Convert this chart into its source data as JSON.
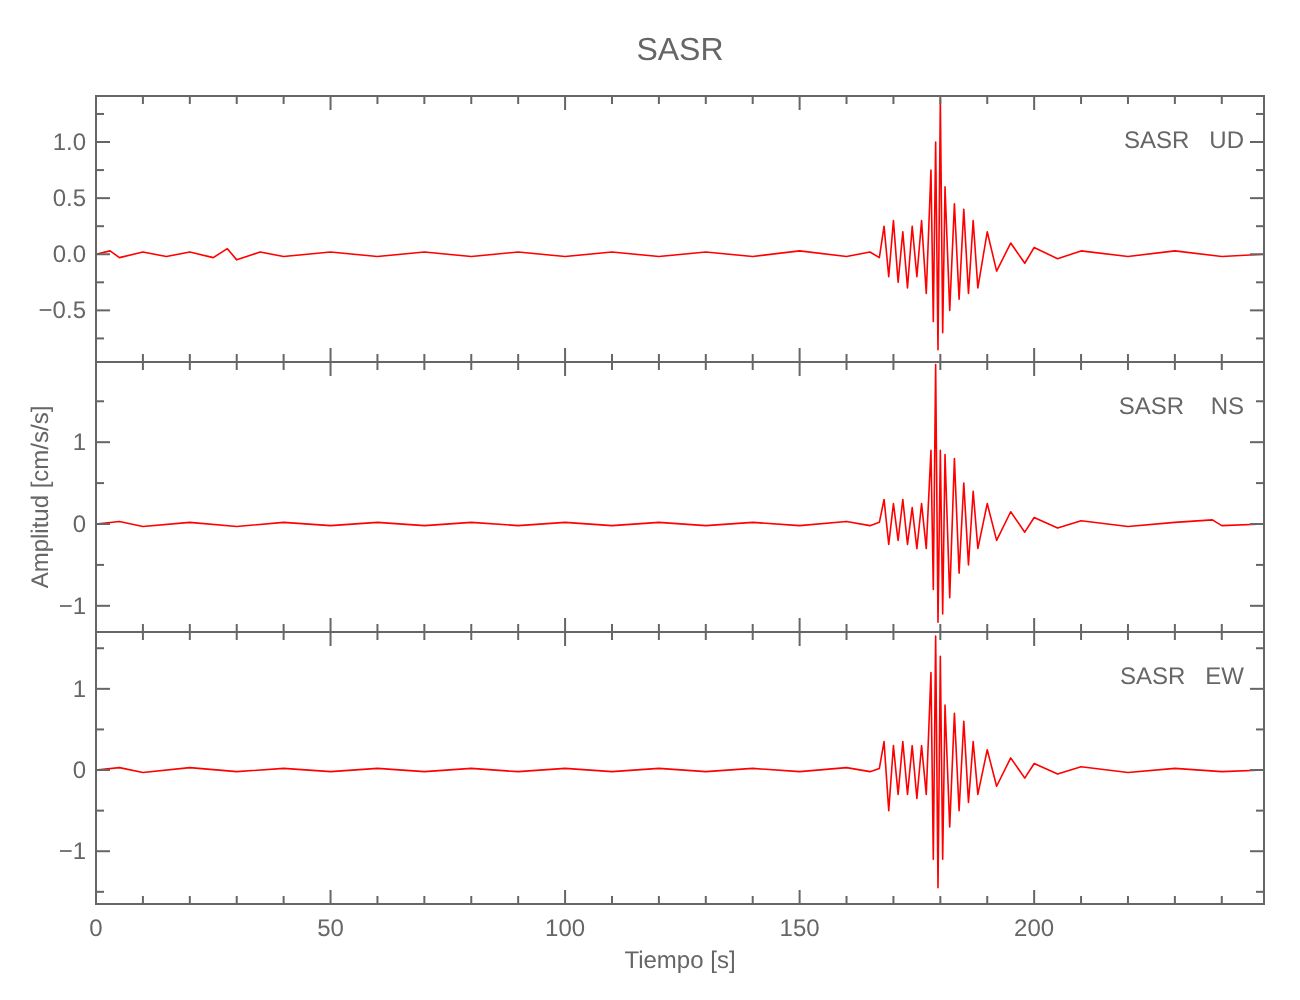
{
  "chart_data": [
    {
      "type": "line",
      "title": "SASR",
      "annotations": [
        "SASR   UD"
      ],
      "tick_labels": "y",
      "xlim": [
        0,
        249
      ],
      "xticks": [
        0,
        {
          "value": 10,
          "label": null
        },
        {
          "value": 20,
          "label": null
        },
        {
          "value": 30,
          "label": null
        },
        {
          "value": 40,
          "label": null
        },
        50,
        {
          "value": 60,
          "label": null
        },
        {
          "value": 70,
          "label": null
        },
        {
          "value": 80,
          "label": null
        },
        {
          "value": 90,
          "label": null
        },
        100,
        {
          "value": 110,
          "label": null
        },
        {
          "value": 120,
          "label": null
        },
        {
          "value": 130,
          "label": null
        },
        {
          "value": 140,
          "label": null
        },
        150,
        {
          "value": 160,
          "label": null
        },
        {
          "value": 170,
          "label": null
        },
        {
          "value": 180,
          "label": null
        },
        {
          "value": 190,
          "label": null
        },
        200,
        {
          "value": 210,
          "label": null
        },
        {
          "value": 220,
          "label": null
        },
        {
          "value": 230,
          "label": null
        },
        {
          "value": 240,
          "label": null
        }
      ],
      "ylim": [
        -0.96,
        1.41
      ],
      "yticks": [
        {
          "value": -0.75,
          "label": null
        },
        {
          "value": -0.5,
          "label": "−0.5"
        },
        {
          "value": -0.25,
          "label": null
        },
        {
          "value": 0,
          "label": "0.0"
        },
        {
          "value": 0.25,
          "label": null
        },
        {
          "value": 0.5,
          "label": "0.5"
        },
        {
          "value": 0.75,
          "label": null
        },
        {
          "value": 1,
          "label": "1.0"
        },
        {
          "value": 1.25,
          "label": null
        }
      ],
      "series": [
        {
          "color": "#ff0000",
          "x": [
            0,
            3,
            5,
            10,
            15,
            20,
            25,
            28,
            30,
            35,
            40,
            50,
            60,
            70,
            80,
            90,
            100,
            110,
            120,
            130,
            140,
            150,
            160,
            165,
            167,
            168,
            169,
            170,
            171,
            172,
            173,
            174,
            175,
            176,
            177,
            178,
            178.5,
            179,
            179.5,
            180,
            180.5,
            181,
            182,
            183,
            184,
            185,
            186,
            187,
            188,
            190,
            192,
            195,
            198,
            200,
            205,
            210,
            220,
            230,
            240,
            249
          ],
          "values": [
            0,
            0.03,
            -0.03,
            0.02,
            -0.02,
            0.02,
            -0.03,
            0.05,
            -0.05,
            0.02,
            -0.02,
            0.02,
            -0.02,
            0.02,
            -0.02,
            0.02,
            -0.02,
            0.02,
            -0.02,
            0.02,
            -0.02,
            0.03,
            -0.02,
            0.02,
            -0.03,
            0.25,
            -0.2,
            0.3,
            -0.25,
            0.2,
            -0.3,
            0.25,
            -0.2,
            0.3,
            -0.35,
            0.75,
            -0.6,
            1,
            -0.85,
            1.38,
            -0.7,
            0.6,
            -0.5,
            0.45,
            -0.4,
            0.4,
            -0.35,
            0.3,
            -0.3,
            0.2,
            -0.15,
            0.1,
            -0.08,
            0.06,
            -0.04,
            0.03,
            -0.02,
            0.03,
            -0.02,
            0
          ]
        }
      ]
    },
    {
      "type": "line",
      "ylabel": "Amplitud [cm/s/s]",
      "annotations": [
        "SASR    NS"
      ],
      "tick_labels": "y",
      "xlim": [
        0,
        249
      ],
      "xticks": [
        0,
        {
          "value": 10,
          "label": null
        },
        {
          "value": 20,
          "label": null
        },
        {
          "value": 30,
          "label": null
        },
        {
          "value": 40,
          "label": null
        },
        50,
        {
          "value": 60,
          "label": null
        },
        {
          "value": 70,
          "label": null
        },
        {
          "value": 80,
          "label": null
        },
        {
          "value": 90,
          "label": null
        },
        100,
        {
          "value": 110,
          "label": null
        },
        {
          "value": 120,
          "label": null
        },
        {
          "value": 130,
          "label": null
        },
        {
          "value": 140,
          "label": null
        },
        150,
        {
          "value": 160,
          "label": null
        },
        {
          "value": 170,
          "label": null
        },
        {
          "value": 180,
          "label": null
        },
        {
          "value": 190,
          "label": null
        },
        200,
        {
          "value": 210,
          "label": null
        },
        {
          "value": 220,
          "label": null
        },
        {
          "value": 230,
          "label": null
        },
        {
          "value": 240,
          "label": null
        }
      ],
      "ylim": [
        -1.32,
        1.98
      ],
      "yticks": [
        {
          "value": -1,
          "label": "−1"
        },
        {
          "value": -0.5,
          "label": null
        },
        {
          "value": 0,
          "label": "0"
        },
        {
          "value": 0.5,
          "label": null
        },
        {
          "value": 1,
          "label": "1"
        },
        {
          "value": 1.5,
          "label": null
        }
      ],
      "series": [
        {
          "color": "#ff0000",
          "x": [
            0,
            5,
            10,
            20,
            30,
            40,
            50,
            60,
            70,
            80,
            90,
            100,
            110,
            120,
            130,
            140,
            150,
            160,
            165,
            167,
            168,
            169,
            170,
            171,
            172,
            173,
            174,
            175,
            176,
            177,
            178,
            178.5,
            179,
            179.5,
            180,
            180.5,
            181,
            182,
            183,
            184,
            185,
            186,
            187,
            188,
            190,
            192,
            195,
            198,
            200,
            205,
            210,
            220,
            230,
            238,
            240,
            249
          ],
          "values": [
            0,
            0.03,
            -0.03,
            0.02,
            -0.03,
            0.02,
            -0.02,
            0.02,
            -0.02,
            0.02,
            -0.02,
            0.02,
            -0.02,
            0.02,
            -0.02,
            0.02,
            -0.02,
            0.03,
            -0.02,
            0.02,
            0.3,
            -0.25,
            0.25,
            -0.2,
            0.3,
            -0.25,
            0.2,
            -0.3,
            0.25,
            -0.3,
            0.9,
            -0.8,
            1.95,
            -1.2,
            0.9,
            -1.1,
            0.85,
            -0.9,
            0.8,
            -0.6,
            0.5,
            -0.5,
            0.4,
            -0.3,
            0.25,
            -0.2,
            0.15,
            -0.1,
            0.08,
            -0.05,
            0.04,
            -0.03,
            0.02,
            0.05,
            -0.02,
            0
          ]
        }
      ]
    },
    {
      "type": "line",
      "xlabel": "Tiempo [s]",
      "annotations": [
        "SASR   EW"
      ],
      "xlim": [
        0,
        249
      ],
      "xticks": [
        0,
        {
          "value": 10,
          "label": null
        },
        {
          "value": 20,
          "label": null
        },
        {
          "value": 30,
          "label": null
        },
        {
          "value": 40,
          "label": null
        },
        50,
        {
          "value": 60,
          "label": null
        },
        {
          "value": 70,
          "label": null
        },
        {
          "value": 80,
          "label": null
        },
        {
          "value": 90,
          "label": null
        },
        100,
        {
          "value": 110,
          "label": null
        },
        {
          "value": 120,
          "label": null
        },
        {
          "value": 130,
          "label": null
        },
        {
          "value": 140,
          "label": null
        },
        150,
        {
          "value": 160,
          "label": null
        },
        {
          "value": 170,
          "label": null
        },
        {
          "value": 180,
          "label": null
        },
        {
          "value": 190,
          "label": null
        },
        200,
        {
          "value": 210,
          "label": null
        },
        {
          "value": 220,
          "label": null
        },
        {
          "value": 230,
          "label": null
        },
        {
          "value": 240,
          "label": null
        }
      ],
      "ylim": [
        -1.65,
        1.7
      ],
      "yticks": [
        {
          "value": -1.5,
          "label": null
        },
        {
          "value": -1,
          "label": "−1"
        },
        {
          "value": -0.5,
          "label": null
        },
        {
          "value": 0,
          "label": "0"
        },
        {
          "value": 0.5,
          "label": null
        },
        {
          "value": 1,
          "label": "1"
        },
        {
          "value": 1.5,
          "label": null
        }
      ],
      "series": [
        {
          "color": "#ff0000",
          "x": [
            0,
            5,
            10,
            20,
            30,
            40,
            50,
            60,
            70,
            80,
            90,
            100,
            110,
            120,
            130,
            140,
            150,
            160,
            165,
            167,
            168,
            169,
            170,
            171,
            172,
            173,
            174,
            175,
            176,
            177,
            178,
            178.5,
            179,
            179.5,
            180,
            180.5,
            181,
            182,
            183,
            184,
            185,
            186,
            187,
            188,
            190,
            192,
            195,
            198,
            200,
            205,
            210,
            220,
            230,
            240,
            249
          ],
          "values": [
            0,
            0.03,
            -0.03,
            0.03,
            -0.02,
            0.02,
            -0.02,
            0.02,
            -0.02,
            0.02,
            -0.02,
            0.02,
            -0.02,
            0.02,
            -0.02,
            0.02,
            -0.02,
            0.03,
            -0.02,
            0.02,
            0.35,
            -0.5,
            0.3,
            -0.3,
            0.35,
            -0.3,
            0.3,
            -0.35,
            0.3,
            -0.3,
            1.2,
            -1.1,
            1.65,
            -1.45,
            1.4,
            -1.1,
            0.8,
            -0.7,
            0.7,
            -0.5,
            0.6,
            -0.4,
            0.35,
            -0.3,
            0.25,
            -0.2,
            0.15,
            -0.1,
            0.08,
            -0.05,
            0.04,
            -0.03,
            0.02,
            -0.02,
            0
          ]
        }
      ]
    }
  ]
}
